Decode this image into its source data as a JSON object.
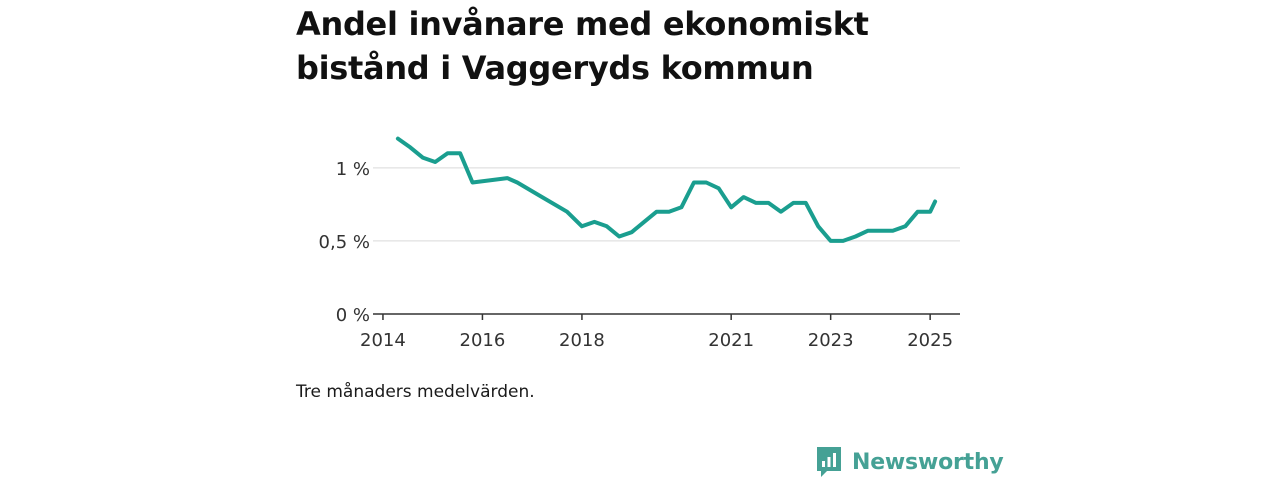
{
  "title": "Andel invånare med ekonomiskt bistånd i Vaggeryds kommun",
  "footnote": "Tre månaders medelvärden.",
  "brand": {
    "name": "Newsworthy",
    "icon": "newsworthy-logo-icon",
    "color": "#45a195"
  },
  "chart_data": {
    "type": "line",
    "title": "Andel invånare med ekonomiskt bistånd i Vaggeryds kommun",
    "xlabel": "",
    "ylabel": "",
    "x_ticks": [
      {
        "label": "2014",
        "value": 2014.0
      },
      {
        "label": "2016",
        "value": 2016.0
      },
      {
        "label": "2018",
        "value": 2018.0
      },
      {
        "label": "2021",
        "value": 2021.0
      },
      {
        "label": "2023",
        "value": 2023.0
      },
      {
        "label": "2025",
        "value": 2025.0
      }
    ],
    "y_ticks": [
      {
        "label": "0 %",
        "value": 0
      },
      {
        "label": "0,5 %",
        "value": 0.5
      },
      {
        "label": "1 %",
        "value": 1.0
      }
    ],
    "xlim": [
      2013.8,
      2025.6
    ],
    "ylim": [
      0,
      1.3
    ],
    "grid": true,
    "line_color": "#1a9e8f",
    "series": [
      {
        "name": "",
        "x": [
          2014.3,
          2014.55,
          2014.8,
          2015.05,
          2015.3,
          2015.55,
          2015.8,
          2016.5,
          2016.7,
          2017.2,
          2017.7,
          2018.0,
          2018.25,
          2018.5,
          2018.75,
          2019.0,
          2019.25,
          2019.5,
          2019.75,
          2020.0,
          2020.25,
          2020.5,
          2020.75,
          2021.0,
          2021.25,
          2021.5,
          2021.75,
          2022.0,
          2022.25,
          2022.5,
          2022.75,
          2023.0,
          2023.25,
          2023.5,
          2023.75,
          2024.0,
          2024.25,
          2024.5,
          2024.75,
          2025.0,
          2025.1
        ],
        "y": [
          1.2,
          1.14,
          1.07,
          1.04,
          1.1,
          1.1,
          0.9,
          0.93,
          0.9,
          0.8,
          0.7,
          0.6,
          0.63,
          0.6,
          0.53,
          0.56,
          0.63,
          0.7,
          0.7,
          0.73,
          0.9,
          0.9,
          0.86,
          0.73,
          0.8,
          0.76,
          0.76,
          0.7,
          0.76,
          0.76,
          0.6,
          0.5,
          0.5,
          0.53,
          0.57,
          0.57,
          0.57,
          0.6,
          0.7,
          0.7,
          0.77
        ]
      }
    ]
  }
}
